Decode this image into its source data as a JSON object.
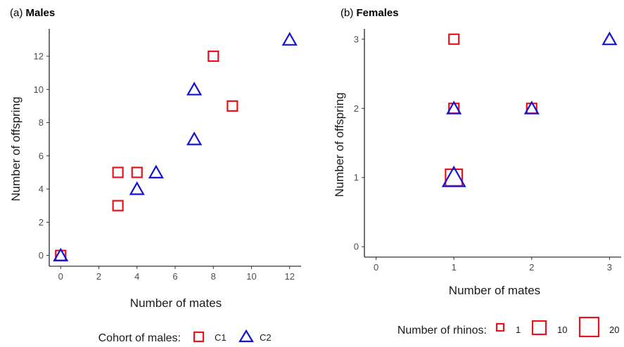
{
  "chart_data": [
    {
      "type": "scatter",
      "panel_tag": "(a)",
      "title": "Males",
      "xlabel": "Number of mates",
      "ylabel": "Number of offspring",
      "xlim": [
        -0.6,
        12.6
      ],
      "ylim": [
        -0.65,
        13.65
      ],
      "xticks": [
        0,
        2,
        4,
        6,
        8,
        10,
        12
      ],
      "yticks": [
        0,
        2,
        4,
        6,
        8,
        10,
        12
      ],
      "grid": false,
      "legend": {
        "title": "Cohort of males:",
        "position": "bottom"
      },
      "series": [
        {
          "name": "C1",
          "marker": "square",
          "color": "#e8141c",
          "points": [
            [
              0,
              0
            ],
            [
              3,
              3
            ],
            [
              3,
              5
            ],
            [
              4,
              5
            ],
            [
              8,
              12
            ],
            [
              9,
              9
            ]
          ]
        },
        {
          "name": "C2",
          "marker": "triangle",
          "color": "#1414d2",
          "points": [
            [
              0,
              0
            ],
            [
              4,
              4
            ],
            [
              5,
              5
            ],
            [
              7,
              7
            ],
            [
              7,
              10
            ],
            [
              12,
              13
            ]
          ]
        }
      ]
    },
    {
      "type": "scatter",
      "panel_tag": "(b)",
      "title": "Females",
      "xlabel": "Number of mates",
      "ylabel": "Number of offspring",
      "xlim": [
        -0.15,
        3.15
      ],
      "ylim": [
        -0.15,
        3.15
      ],
      "xticks": [
        0,
        1,
        2,
        3
      ],
      "yticks": [
        0,
        1,
        2,
        3
      ],
      "grid": false,
      "legend": {
        "title": "Number of rhinos:",
        "position": "bottom",
        "entries": [
          1,
          10,
          20
        ]
      },
      "series": [
        {
          "name": "C1",
          "marker": "square",
          "color": "#e8141c",
          "points": [
            [
              1,
              3,
              1
            ],
            [
              1,
              2,
              1
            ],
            [
              2,
              2,
              1
            ],
            [
              1,
              1,
              20
            ]
          ]
        },
        {
          "name": "C2",
          "marker": "triangle",
          "color": "#1414d2",
          "points": [
            [
              1,
              2,
              1
            ],
            [
              2,
              2,
              1
            ],
            [
              3,
              3,
              1
            ],
            [
              1,
              1,
              20
            ]
          ]
        }
      ]
    }
  ],
  "legend_a": {
    "title": "Cohort of males:",
    "items": [
      "C1",
      "C2"
    ]
  },
  "legend_b": {
    "title": "Number of rhinos:",
    "items": [
      "1",
      "10",
      "20"
    ]
  },
  "colors": {
    "red": "#e8141c",
    "blue": "#1414d2"
  }
}
